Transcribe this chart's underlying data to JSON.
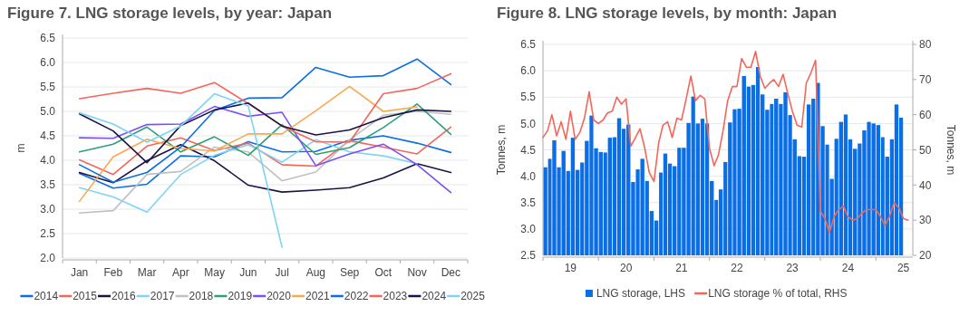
{
  "chart_data": [
    {
      "type": "line",
      "title": "Figure 7.  LNG storage levels, by year: Japan",
      "ylabel": "m",
      "categories": [
        "Jan",
        "Feb",
        "Mar",
        "Apr",
        "May",
        "Jun",
        "Jul",
        "Aug",
        "Sep",
        "Oct",
        "Nov",
        "Dec"
      ],
      "ylim": [
        2.0,
        6.5
      ],
      "yticks": [
        {
          "value": 2.0,
          "label": "2.0"
        },
        2.5,
        {
          "value": 3.0,
          "label": "3.0"
        },
        3.5,
        {
          "value": 4.0,
          "label": "4.0"
        },
        4.5,
        {
          "value": 5.0,
          "label": "5.0"
        },
        5.5,
        {
          "value": 6.0,
          "label": "6.0"
        },
        6.5
      ],
      "grid": "y",
      "legend": "bottom",
      "series": [
        {
          "name": "2014",
          "color": "#0a6ee6",
          "values": [
            3.73,
            3.43,
            3.51,
            4.09,
            4.07,
            4.38,
            4.17,
            4.18,
            4.41,
            4.5,
            4.35,
            4.16
          ]
        },
        {
          "name": "2015",
          "color": "#f4665a",
          "values": [
            4.01,
            3.71,
            4.29,
            4.46,
            4.2,
            4.35,
            3.91,
            3.88,
            4.4,
            4.27,
            4.13,
            4.68
          ]
        },
        {
          "name": "2016",
          "color": "#1a1446",
          "values": [
            3.75,
            3.54,
            3.99,
            4.32,
            3.99,
            3.49,
            3.35,
            3.39,
            3.44,
            3.64,
            3.93,
            3.75
          ]
        },
        {
          "name": "2017",
          "color": "#7fd3f5",
          "values": [
            3.44,
            3.25,
            2.94,
            3.71,
            4.1,
            4.32,
            3.96,
            4.42,
            4.17,
            4.09,
            3.93,
            null
          ]
        },
        {
          "name": "2018",
          "color": "#c0c0c0",
          "values": [
            2.92,
            2.97,
            3.71,
            3.77,
            4.27,
            4.17,
            3.58,
            3.76,
            4.42,
            4.92,
            5.0,
            4.94
          ]
        },
        {
          "name": "2019",
          "color": "#2ba07c",
          "values": [
            4.17,
            4.33,
            4.68,
            4.17,
            4.48,
            4.1,
            4.73,
            4.12,
            4.26,
            4.67,
            5.15,
            4.53
          ]
        },
        {
          "name": "2020",
          "color": "#7b4ff7",
          "values": [
            4.46,
            4.45,
            4.73,
            4.74,
            5.1,
            4.9,
            4.98,
            3.89,
            4.13,
            4.33,
            3.91,
            3.34
          ]
        },
        {
          "name": "2021",
          "color": "#f8a94e",
          "values": [
            3.16,
            4.07,
            4.43,
            4.24,
            4.19,
            4.54,
            4.54,
            5.01,
            5.51,
            5.0,
            5.09,
            null
          ]
        },
        {
          "name": "2022",
          "color": "#0a6ee6",
          "values": [
            3.91,
            3.55,
            3.75,
            4.27,
            5.02,
            5.27,
            5.28,
            5.9,
            5.7,
            5.73,
            6.07,
            5.55
          ]
        },
        {
          "name": "2023",
          "color": "#f4665a",
          "values": [
            5.26,
            5.37,
            5.47,
            5.37,
            5.59,
            5.16,
            4.7,
            4.38,
            4.37,
            5.36,
            5.47,
            5.77
          ]
        },
        {
          "name": "2024",
          "color": "#1a1446",
          "values": [
            4.95,
            4.6,
            3.95,
            4.71,
            5.03,
            5.17,
            4.7,
            4.52,
            4.62,
            4.87,
            5.03,
            5.0
          ]
        },
        {
          "name": "2025",
          "color": "#7fd3f5",
          "values": [
            4.97,
            4.74,
            4.37,
            4.7,
            5.36,
            5.11,
            2.22,
            null,
            null,
            null,
            null,
            null
          ]
        }
      ]
    },
    {
      "type": "bar",
      "title": "Figure 8.  LNG storage levels, by month: Japan",
      "ylabel": "Tonnes, m",
      "y2label": "Tonnes, m",
      "xlim": [
        "2019-01",
        "2025-09"
      ],
      "xticks": [
        {
          "value": "2019-01",
          "label": null
        },
        {
          "value": "2019-07",
          "label": "19"
        },
        {
          "value": "2020-01",
          "label": null
        },
        {
          "value": "2020-07",
          "label": "20"
        },
        {
          "value": "2021-01",
          "label": null
        },
        {
          "value": "2021-07",
          "label": "21"
        },
        {
          "value": "2022-01",
          "label": null
        },
        {
          "value": "2022-07",
          "label": "22"
        },
        {
          "value": "2023-01",
          "label": null
        },
        {
          "value": "2023-07",
          "label": "23"
        },
        {
          "value": "2024-01",
          "label": null
        },
        {
          "value": "2024-07",
          "label": "24"
        },
        {
          "value": "2025-01",
          "label": null
        },
        {
          "value": "2025-07",
          "label": "25"
        }
      ],
      "ylim": [
        2.5,
        6.5
      ],
      "yticks": [
        2.5,
        {
          "value": 3.0,
          "label": "3.0"
        },
        3.5,
        {
          "value": 4.0,
          "label": "4.0"
        },
        4.5,
        {
          "value": 5.0,
          "label": "5.0"
        },
        5.5,
        {
          "value": 6.0,
          "label": "6.0"
        },
        6.5
      ],
      "y2lim": [
        20,
        80
      ],
      "y2ticks": [
        20,
        30,
        40,
        50,
        60,
        70,
        80
      ],
      "grid": "y",
      "legend": "bottom",
      "series": [
        {
          "name": "LNG storage, LHS",
          "axis": "y",
          "color": "#0a6ee6",
          "x": [
            "2019-01",
            "2019-02",
            "2019-03",
            "2019-04",
            "2019-05",
            "2019-06",
            "2019-07",
            "2019-08",
            "2019-09",
            "2019-10",
            "2019-11",
            "2019-12",
            "2020-01",
            "2020-02",
            "2020-03",
            "2020-04",
            "2020-05",
            "2020-06",
            "2020-07",
            "2020-08",
            "2020-09",
            "2020-10",
            "2020-11",
            "2020-12",
            "2021-01",
            "2021-02",
            "2021-03",
            "2021-04",
            "2021-05",
            "2021-06",
            "2021-07",
            "2021-08",
            "2021-09",
            "2021-10",
            "2021-11",
            "2021-12",
            "2022-01",
            "2022-02",
            "2022-03",
            "2022-04",
            "2022-05",
            "2022-06",
            "2022-07",
            "2022-08",
            "2022-09",
            "2022-10",
            "2022-11",
            "2022-12",
            "2023-01",
            "2023-02",
            "2023-03",
            "2023-04",
            "2023-05",
            "2023-06",
            "2023-07",
            "2023-08",
            "2023-09",
            "2023-10",
            "2023-11",
            "2023-12",
            "2024-01",
            "2024-02",
            "2024-03",
            "2024-04",
            "2024-05",
            "2024-06",
            "2024-07",
            "2024-08",
            "2024-09",
            "2024-10",
            "2024-11",
            "2024-12",
            "2025-01",
            "2025-02",
            "2025-03",
            "2025-04",
            "2025-05",
            "2025-06"
          ],
          "values": [
            4.17,
            4.33,
            4.68,
            4.17,
            4.48,
            4.1,
            4.73,
            4.12,
            4.26,
            4.67,
            5.15,
            4.53,
            4.46,
            4.45,
            4.73,
            4.74,
            5.1,
            4.9,
            4.98,
            3.89,
            4.13,
            4.33,
            3.91,
            3.34,
            3.16,
            4.07,
            4.43,
            4.24,
            4.19,
            4.54,
            4.54,
            5.01,
            5.51,
            5.0,
            5.09,
            5.0,
            3.91,
            3.55,
            3.75,
            4.27,
            5.02,
            5.27,
            5.28,
            5.9,
            5.7,
            5.73,
            6.07,
            5.55,
            5.26,
            5.37,
            5.47,
            5.37,
            5.59,
            5.16,
            4.7,
            4.38,
            4.37,
            5.36,
            5.47,
            5.77,
            4.95,
            4.6,
            3.95,
            4.71,
            5.03,
            5.17,
            4.7,
            4.52,
            4.62,
            4.87,
            5.03,
            5.0,
            4.97,
            4.74,
            4.37,
            4.7,
            5.36,
            5.11
          ]
        },
        {
          "name": "LNG storage % of total, RHS",
          "type": "line",
          "axis": "y2",
          "color": "#f4665a",
          "x": [
            "2019-01",
            "2019-02",
            "2019-03",
            "2019-04",
            "2019-05",
            "2019-06",
            "2019-07",
            "2019-08",
            "2019-09",
            "2019-10",
            "2019-11",
            "2019-12",
            "2020-01",
            "2020-02",
            "2020-03",
            "2020-04",
            "2020-05",
            "2020-06",
            "2020-07",
            "2020-08",
            "2020-09",
            "2020-10",
            "2020-11",
            "2020-12",
            "2021-01",
            "2021-02",
            "2021-03",
            "2021-04",
            "2021-05",
            "2021-06",
            "2021-07",
            "2021-08",
            "2021-09",
            "2021-10",
            "2021-11",
            "2021-12",
            "2022-01",
            "2022-02",
            "2022-03",
            "2022-04",
            "2022-05",
            "2022-06",
            "2022-07",
            "2022-08",
            "2022-09",
            "2022-10",
            "2022-11",
            "2022-12",
            "2023-01",
            "2023-02",
            "2023-03",
            "2023-04",
            "2023-05",
            "2023-06",
            "2023-07",
            "2023-08",
            "2023-09",
            "2023-10",
            "2023-11",
            "2023-12",
            "2024-01",
            "2024-02",
            "2024-03",
            "2024-04",
            "2024-05",
            "2024-06",
            "2024-07",
            "2024-08",
            "2024-09",
            "2024-10",
            "2024-11",
            "2024-12",
            "2025-01",
            "2025-02",
            "2025-03",
            "2025-04",
            "2025-05",
            "2025-06",
            "2025-07",
            "2025-08"
          ],
          "values": [
            53.5,
            55.5,
            60,
            54,
            58,
            53,
            61,
            53,
            55,
            59,
            66.5,
            58.5,
            57.5,
            58.5,
            60.5,
            61,
            65,
            63,
            64.5,
            51,
            53.5,
            56,
            50.5,
            43.5,
            41,
            52,
            57,
            58,
            53.5,
            59,
            58.5,
            64.5,
            71,
            64,
            65.5,
            64.5,
            50.5,
            45.5,
            48.5,
            55.5,
            64,
            68,
            68,
            76,
            73.5,
            73.5,
            78,
            71,
            67.5,
            69,
            70,
            68,
            71.5,
            66,
            61,
            57,
            56.5,
            69,
            72,
            75.5,
            32.5,
            30.5,
            26.5,
            31,
            33,
            34,
            31,
            30,
            30.5,
            32,
            33,
            33,
            33,
            31,
            28.5,
            31,
            35,
            33.5,
            30.5,
            30
          ]
        }
      ]
    }
  ]
}
